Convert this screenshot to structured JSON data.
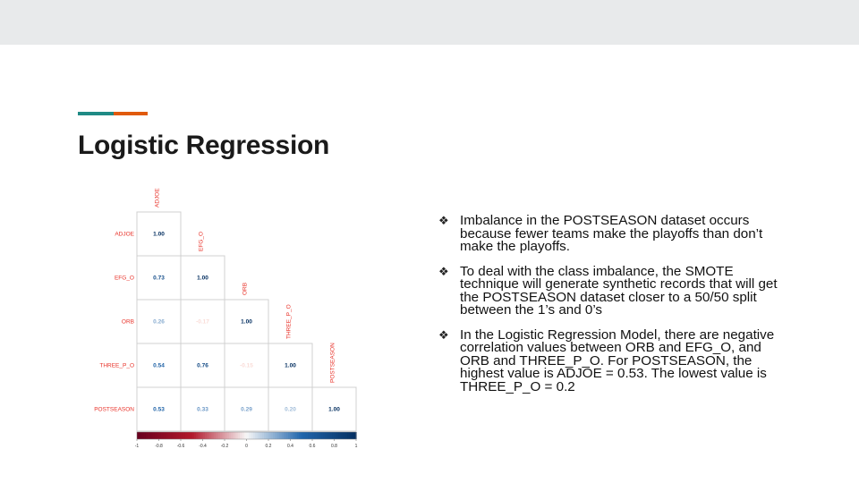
{
  "slide": {
    "title": "Logistic Regression",
    "colors": {
      "accent_teal": "#1f8a85",
      "accent_orange": "#e05a0c",
      "topbar": "#e8eaeb"
    }
  },
  "bullets": [
    "Imbalance in the POSTSEASON  dataset occurs because fewer teams make the playoffs than don’t make the playoffs.",
    "To deal with the class imbalance, the SMOTE technique will generate synthetic records that will get the POSTSEASON  dataset closer to a 50/50 split between the 1’s and 0’s",
    "In the Logistic Regression Model, there are negative correlation values between ORB and EFG_O, and ORB and THREE_P_O. For POSTSEASON,  the highest value is ADJOE = 0.53. The lowest value is THREE_P_O = 0.2"
  ],
  "bullet_icon": "diamond-bullet-icon",
  "chart_data": {
    "type": "heatmap",
    "variables": [
      "ADJOE",
      "EFG_O",
      "ORB",
      "THREE_P_O",
      "POSTSEASON"
    ],
    "matrix_lower": [
      [
        1.0
      ],
      [
        0.73,
        1.0
      ],
      [
        0.26,
        -0.17,
        1.0
      ],
      [
        0.54,
        0.76,
        -0.15,
        1.0
      ],
      [
        0.53,
        0.33,
        0.29,
        0.2,
        1.0
      ]
    ],
    "cell_labels": [
      [
        "1.00"
      ],
      [
        "0.73",
        "1.00"
      ],
      [
        "0.26",
        "-0.17",
        "1.00"
      ],
      [
        "0.54",
        "0.76",
        "-0.15",
        "1.00"
      ],
      [
        "0.53",
        "0.33",
        "0.29",
        "0.20",
        "1.00"
      ]
    ],
    "colorbar_ticks": [
      "-1",
      "-0.8",
      "-0.6",
      "-0.4",
      "-0.2",
      "0",
      "0.2",
      "0.4",
      "0.6",
      "0.8",
      "1"
    ],
    "range": [
      -1,
      1
    ],
    "label_color": "#e8332a",
    "color_low": "#67001f",
    "color_mid": "#f7f7f7",
    "color_high": "#053061"
  }
}
